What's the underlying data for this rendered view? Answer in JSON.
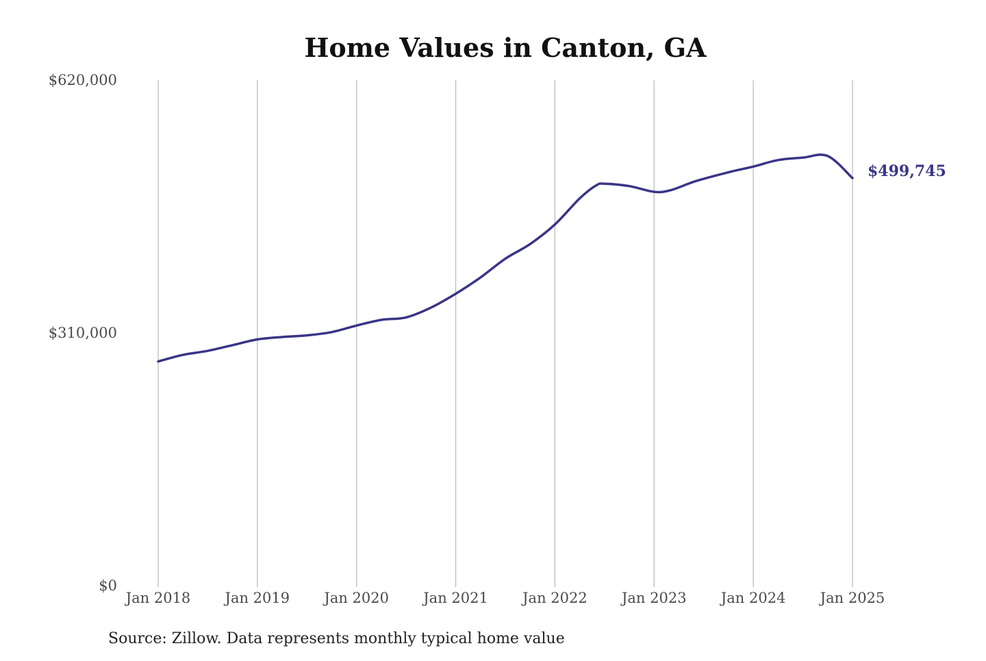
{
  "chart_data": {
    "type": "line",
    "title": "Home Values in Canton, GA",
    "xlabel": "",
    "ylabel": "",
    "source": "Source: Zillow. Data represents monthly typical home value",
    "ylim": [
      0,
      620000
    ],
    "yticks": [
      0,
      310000,
      620000
    ],
    "ytick_labels": [
      "$0",
      "$310,000",
      "$620,000"
    ],
    "xticks": [
      "2018-01",
      "2019-01",
      "2020-01",
      "2021-01",
      "2022-01",
      "2023-01",
      "2024-01",
      "2025-01"
    ],
    "xtick_labels": [
      "Jan 2018",
      "Jan 2019",
      "Jan 2020",
      "Jan 2021",
      "Jan 2022",
      "Jan 2023",
      "Jan 2024",
      "Jan 2025"
    ],
    "grid": "vertical",
    "line_color": "#3a3587",
    "end_label": "$499,745",
    "series": [
      {
        "x": [
          "2018-01",
          "2018-04",
          "2018-07",
          "2018-10",
          "2019-01",
          "2019-04",
          "2019-07",
          "2019-10",
          "2020-01",
          "2020-04",
          "2020-07",
          "2020-10",
          "2021-01",
          "2021-04",
          "2021-07",
          "2021-10",
          "2022-01",
          "2022-04",
          "2022-06",
          "2022-07",
          "2022-10",
          "2023-01",
          "2023-03",
          "2023-06",
          "2023-10",
          "2024-01",
          "2024-04",
          "2024-07",
          "2024-10",
          "2025-01"
        ],
        "values": [
          275000,
          283000,
          288000,
          295000,
          302000,
          305000,
          307000,
          311000,
          319000,
          326000,
          329000,
          341000,
          358000,
          378000,
          401000,
          419000,
          443000,
          475000,
          491000,
          493000,
          490000,
          483000,
          485000,
          496000,
          507000,
          514000,
          522000,
          525000,
          527000,
          499745
        ]
      }
    ]
  }
}
